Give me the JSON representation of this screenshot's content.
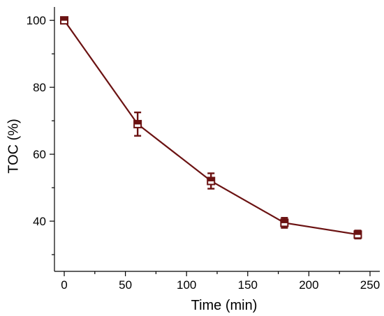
{
  "chart_data": {
    "type": "line",
    "title": "",
    "xlabel": "Time (min)",
    "ylabel": "TOC (%)",
    "xlim": [
      -8,
      258
    ],
    "ylim": [
      25,
      104
    ],
    "x_ticks": [
      0,
      50,
      100,
      150,
      200,
      250
    ],
    "y_ticks": [
      40,
      60,
      80,
      100
    ],
    "grid": false,
    "legend": "none",
    "series": [
      {
        "color": "#6b1212",
        "marker": "open-square-half-filled",
        "points": [
          {
            "x": 0,
            "y": 100,
            "err": 0.6
          },
          {
            "x": 60,
            "y": 69,
            "err": 3.5
          },
          {
            "x": 120,
            "y": 52,
            "err": 2.3
          },
          {
            "x": 180,
            "y": 39.5,
            "err": 1.5
          },
          {
            "x": 240,
            "y": 36,
            "err": 1.2
          }
        ]
      }
    ]
  }
}
